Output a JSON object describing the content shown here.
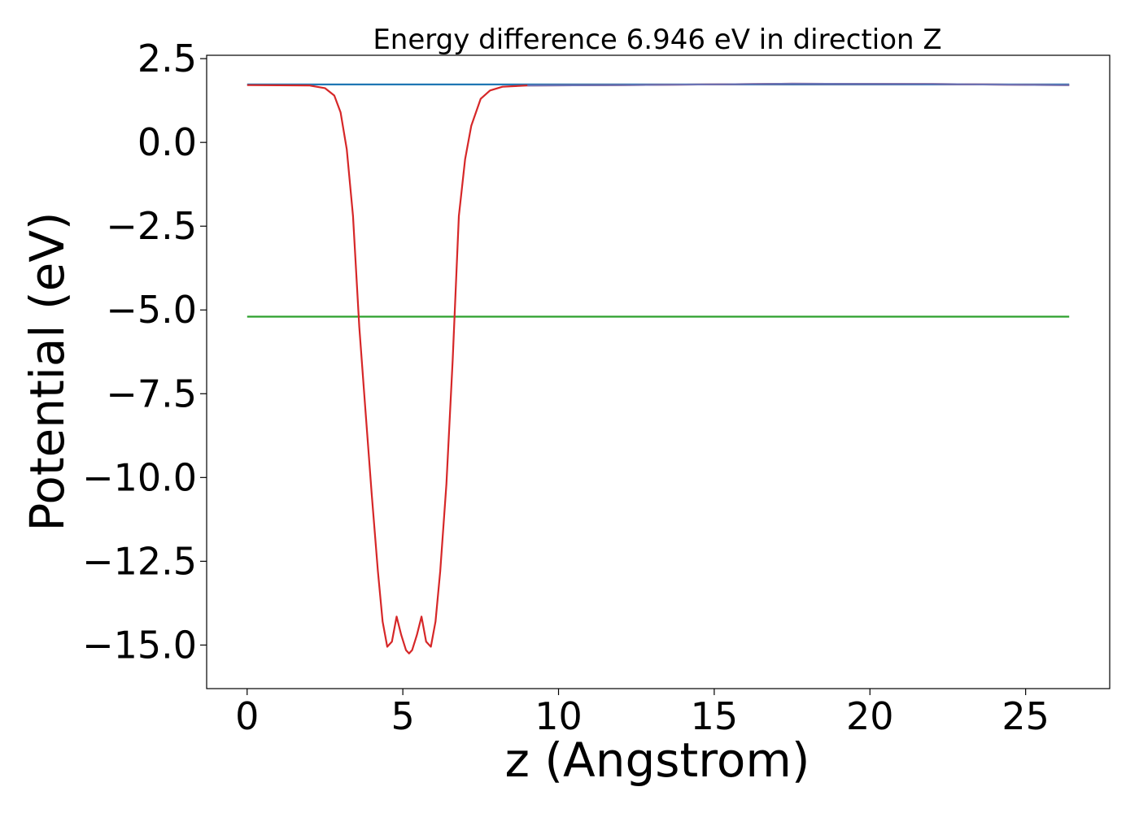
{
  "chart_data": {
    "type": "line",
    "title": "Energy difference 6.946 eV in direction Z",
    "xlabel": "z (Angstrom)",
    "ylabel": "Potential (eV)",
    "xlim": [
      -1.3,
      27.7
    ],
    "ylim": [
      -16.3,
      2.6
    ],
    "xticks": [
      0,
      5,
      10,
      15,
      20,
      25
    ],
    "yticks": [
      2.5,
      0.0,
      -2.5,
      -5.0,
      -7.5,
      -10.0,
      -12.5,
      -15.0
    ],
    "ytick_labels": [
      "2.5",
      "0.0",
      "−2.5",
      "−5.0",
      "−7.5",
      "−10.0",
      "−12.5",
      "−15.0"
    ],
    "grid": false,
    "legend": "none",
    "series": [
      {
        "color": "#1f77b4",
        "x": [
          0,
          26.4
        ],
        "y": [
          1.73,
          1.73
        ]
      },
      {
        "color": "#2ca02c",
        "x": [
          0,
          26.4
        ],
        "y": [
          -5.2,
          -5.2
        ]
      },
      {
        "color": "#d62728",
        "x": [
          0,
          2.0,
          2.5,
          2.8,
          3.0,
          3.2,
          3.4,
          3.6,
          3.8,
          4.0,
          4.2,
          4.35,
          4.5,
          4.65,
          4.8,
          4.95,
          5.1,
          5.2,
          5.3,
          5.45,
          5.6,
          5.75,
          5.9,
          6.05,
          6.2,
          6.4,
          6.6,
          6.8,
          7.0,
          7.2,
          7.5,
          7.8,
          8.2,
          9.0,
          12.0,
          17.5,
          22.0,
          26.4
        ],
        "y": [
          1.71,
          1.7,
          1.62,
          1.4,
          0.9,
          -0.2,
          -2.2,
          -5.5,
          -8.0,
          -10.5,
          -12.8,
          -14.3,
          -15.05,
          -14.9,
          -14.15,
          -14.7,
          -15.15,
          -15.25,
          -15.15,
          -14.7,
          -14.15,
          -14.9,
          -15.05,
          -14.3,
          -12.8,
          -10.2,
          -6.5,
          -2.2,
          -0.5,
          0.5,
          1.3,
          1.55,
          1.66,
          1.7,
          1.71,
          1.75,
          1.74,
          1.71
        ]
      },
      {
        "color": "#6b73b5",
        "x": [
          9.0,
          12.0,
          17.5,
          22.0,
          26.4
        ],
        "y": [
          1.7,
          1.71,
          1.75,
          1.74,
          1.71
        ]
      }
    ]
  }
}
